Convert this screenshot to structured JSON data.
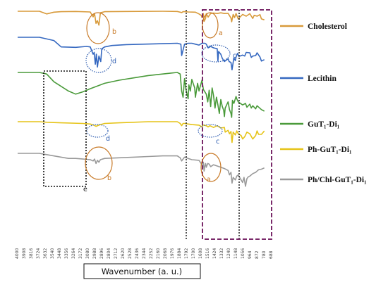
{
  "chart_data": {
    "type": "line",
    "title": "",
    "xlabel": "Wavenumber (a. u.)",
    "ylabel": "",
    "xlim": [
      4000,
      500
    ],
    "x_reversed": true,
    "grid": false,
    "legend_placement": "right",
    "tick_labels": [
      "4000",
      "3908",
      "3816",
      "3724",
      "3632",
      "3540",
      "3448",
      "3356",
      "3264",
      "3172",
      "3080",
      "2988",
      "2896",
      "2804",
      "2712",
      "2620",
      "2528",
      "2436",
      "2344",
      "2252",
      "2160",
      "2068",
      "1976",
      "1884",
      "1792",
      "1700",
      "1608",
      "1516",
      "1424",
      "1332",
      "1240",
      "1148",
      "1056",
      "964",
      "872",
      "780",
      "688"
    ],
    "series": [
      {
        "name": "Cholesterol",
        "color": "#d89a3a",
        "x": [
          4000,
          3700,
          3600,
          3500,
          3400,
          3200,
          3000,
          2960,
          2940,
          2920,
          2900,
          2880,
          2860,
          2800,
          2500,
          2000,
          1800,
          1760,
          1740,
          1720,
          1700,
          1650,
          1550,
          1500,
          1470,
          1460,
          1440,
          1430,
          1410,
          1400,
          1375,
          1340,
          1300,
          1250,
          1200,
          1150,
          1100,
          1060,
          1050,
          1030,
          1010,
          990,
          960,
          900,
          850,
          800,
          760,
          740,
          700,
          660,
          640,
          600
        ],
        "y": [
          8.0,
          8.0,
          6.8,
          7.6,
          7.8,
          7.9,
          7.7,
          5.5,
          7.0,
          2.6,
          3.8,
          1.8,
          7.3,
          7.8,
          7.9,
          8.0,
          7.9,
          7.6,
          7.4,
          7.8,
          7.8,
          7.7,
          7.6,
          6.8,
          6.2,
          5.2,
          7.0,
          3.5,
          4.8,
          6.9,
          5.4,
          7.0,
          7.2,
          7.0,
          7.3,
          7.0,
          7.1,
          5.0,
          3.3,
          6.6,
          5.2,
          7.0,
          4.6,
          6.6,
          5.8,
          6.9,
          4.8,
          6.2,
          5.8,
          6.5,
          4.6,
          4.2
        ]
      },
      {
        "name": "Lecithin",
        "color": "#3568c0",
        "x": [
          4000,
          3700,
          3500,
          3400,
          3200,
          3050,
          3000,
          2960,
          2945,
          2930,
          2915,
          2900,
          2880,
          2855,
          2840,
          2800,
          2700,
          2500,
          2000,
          1800,
          1750,
          1740,
          1700,
          1650,
          1600,
          1550,
          1500,
          1460,
          1420,
          1400,
          1375,
          1340,
          1300,
          1250,
          1240,
          1230,
          1200,
          1180,
          1150,
          1100,
          1085,
          1060,
          1045,
          1020,
          1000,
          990,
          970,
          950,
          900,
          870,
          850,
          800,
          780,
          760,
          720,
          700,
          660,
          640,
          600
        ],
        "y": [
          8.3,
          8.3,
          7.6,
          6.2,
          6.1,
          6.3,
          6.2,
          4.6,
          5.0,
          2.4,
          4.6,
          1.8,
          4.2,
          3.0,
          5.8,
          6.2,
          6.5,
          6.7,
          6.9,
          7.0,
          6.8,
          4.3,
          6.8,
          7.0,
          7.0,
          6.8,
          6.6,
          7.0,
          7.0,
          6.8,
          6.0,
          6.3,
          6.0,
          5.8,
          3.1,
          5.2,
          4.6,
          3.7,
          3.0,
          3.6,
          3.0,
          2.8,
          1.2,
          3.8,
          3.2,
          4.0,
          4.8,
          4.1,
          4.4,
          4.2,
          5.0,
          4.9,
          3.9,
          4.2,
          4.3,
          4.9,
          4.0,
          3.1,
          3.4
        ]
      },
      {
        "name": "GuT₁-Di₁",
        "color": "#4a9a3a",
        "x": [
          4000,
          3700,
          3600,
          3500,
          3300,
          3200,
          3100,
          3000,
          2800,
          2600,
          2400,
          2200,
          2000,
          1900,
          1800,
          1760,
          1740,
          1720,
          1700,
          1680,
          1650,
          1640,
          1620,
          1600,
          1560,
          1550,
          1520,
          1500,
          1460,
          1440,
          1400,
          1380,
          1360,
          1340,
          1320,
          1300,
          1280,
          1260,
          1240,
          1220,
          1200,
          1180,
          1160,
          1150,
          1140,
          1100,
          1080,
          1060,
          1050,
          1040,
          1020,
          990,
          980,
          960,
          900,
          860,
          840,
          800,
          780,
          760,
          720,
          700,
          640,
          600
        ],
        "y": [
          6.8,
          6.8,
          6.6,
          5.6,
          4.4,
          4.0,
          4.3,
          4.7,
          5.4,
          5.8,
          6.1,
          6.4,
          6.6,
          6.7,
          6.8,
          6.6,
          4.4,
          3.6,
          6.0,
          4.6,
          3.4,
          5.2,
          4.4,
          5.9,
          4.8,
          3.6,
          5.4,
          4.4,
          5.8,
          4.6,
          4.0,
          3.0,
          4.5,
          2.4,
          4.8,
          3.8,
          2.2,
          3.6,
          2.6,
          1.5,
          3.3,
          2.4,
          1.9,
          1.1,
          2.2,
          3.0,
          2.0,
          1.5,
          1.0,
          3.2,
          2.8,
          3.7,
          3.4,
          3.0,
          2.6,
          2.8,
          2.3,
          2.7,
          2.2,
          2.5,
          2.1,
          2.5,
          2.0,
          1.8
        ]
      },
      {
        "name": "Ph-GuT₁-Di₁",
        "color": "#e6c419",
        "x": [
          4000,
          3700,
          3600,
          3400,
          3100,
          3000,
          2950,
          2920,
          2880,
          2860,
          2800,
          2600,
          2400,
          2200,
          2000,
          1800,
          1760,
          1740,
          1720,
          1700,
          1650,
          1600,
          1500,
          1460,
          1450,
          1440,
          1400,
          1375,
          1350,
          1300,
          1250,
          1200,
          1150,
          1140,
          1100,
          1080,
          1060,
          1045,
          1030,
          1000,
          980,
          960,
          920,
          900,
          870,
          840,
          800,
          760,
          720,
          700,
          680,
          640,
          600
        ],
        "y": [
          6.6,
          6.6,
          6.5,
          6.4,
          6.3,
          6.2,
          6.0,
          5.8,
          6.0,
          6.1,
          6.3,
          6.4,
          6.5,
          6.6,
          6.6,
          6.6,
          6.3,
          5.9,
          6.3,
          6.3,
          6.2,
          6.1,
          6.0,
          5.7,
          6.1,
          6.0,
          5.9,
          5.7,
          5.9,
          5.6,
          5.9,
          5.5,
          5.6,
          4.8,
          5.1,
          4.5,
          4.9,
          3.0,
          4.8,
          4.3,
          5.0,
          4.5,
          4.2,
          3.6,
          4.0,
          4.8,
          4.5,
          3.6,
          4.2,
          5.0,
          4.4,
          4.4,
          5.0
        ]
      },
      {
        "name": "Ph/Chl-GuT₁-Di₁",
        "color": "#9a9a9a",
        "x": [
          4000,
          3700,
          3600,
          3400,
          3300,
          3200,
          3100,
          3000,
          2960,
          2940,
          2920,
          2900,
          2880,
          2860,
          2800,
          2600,
          2400,
          2200,
          2000,
          1800,
          1760,
          1740,
          1720,
          1700,
          1650,
          1600,
          1500,
          1460,
          1440,
          1430,
          1420,
          1410,
          1400,
          1380,
          1360,
          1340,
          1300,
          1250,
          1200,
          1150,
          1100,
          1080,
          1060,
          1045,
          1030,
          1000,
          980,
          960,
          900,
          880,
          860,
          840,
          820,
          800,
          760,
          720,
          700,
          680,
          640,
          600
        ],
        "y": [
          6.6,
          6.6,
          6.4,
          6.0,
          5.8,
          5.8,
          5.7,
          5.6,
          5.4,
          5.7,
          5.0,
          5.5,
          5.2,
          5.6,
          5.8,
          5.9,
          6.0,
          6.1,
          6.2,
          6.2,
          5.9,
          5.4,
          5.7,
          6.0,
          5.8,
          5.6,
          5.5,
          4.8,
          5.2,
          3.8,
          4.6,
          5.0,
          4.4,
          5.0,
          4.9,
          4.5,
          4.8,
          4.6,
          4.4,
          4.2,
          3.9,
          3.2,
          3.6,
          1.9,
          2.8,
          2.4,
          3.0,
          3.2,
          2.0,
          2.8,
          1.4,
          2.6,
          2.9,
          3.0,
          3.4,
          3.6,
          3.8,
          4.0,
          4.1,
          4.3
        ]
      }
    ],
    "annotations": [
      {
        "label": "a",
        "color": "#c87a28",
        "target": "Cholesterol"
      },
      {
        "label": "b",
        "color": "#c87a28",
        "target": "Cholesterol"
      },
      {
        "label": "c",
        "color": "#2d5cb0",
        "target": "Lecithin"
      },
      {
        "label": "d",
        "color": "#2d5cb0",
        "target": "Lecithin"
      },
      {
        "label": "d",
        "color": "#2d5cb0",
        "target": "Ph-GuT₁-Di₁"
      },
      {
        "label": "c",
        "color": "#2d5cb0",
        "target": "Ph-GuT₁-Di₁"
      },
      {
        "label": "b",
        "color": "#c87a28",
        "target": "Ph/Chl-GuT₁-Di₁"
      },
      {
        "label": "a",
        "color": "#c87a28",
        "target": "Ph/Chl-GuT₁-Di₁"
      },
      {
        "label": "e",
        "color": "#111111",
        "target": "GuT₁-Di₁"
      }
    ]
  }
}
